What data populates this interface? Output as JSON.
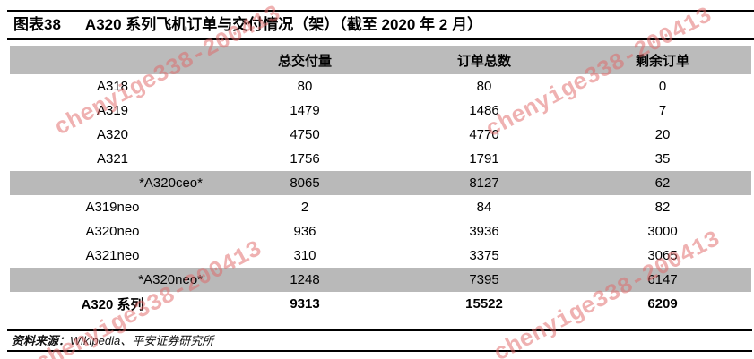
{
  "title": {
    "index": "图表38",
    "text": "A320 系列飞机订单与交付情况（架）（截至 2020 年 2 月）"
  },
  "table": {
    "columns": [
      "",
      "总交付量",
      "订单总数",
      "剩余订单"
    ],
    "rows": [
      {
        "label": "A318",
        "delivered": "80",
        "orders": "80",
        "remaining": "0",
        "style": "normal"
      },
      {
        "label": "A319",
        "delivered": "1479",
        "orders": "1486",
        "remaining": "7",
        "style": "normal"
      },
      {
        "label": "A320",
        "delivered": "4750",
        "orders": "4770",
        "remaining": "20",
        "style": "normal"
      },
      {
        "label": "A321",
        "delivered": "1756",
        "orders": "1791",
        "remaining": "35",
        "style": "normal"
      },
      {
        "label": "*A320ceo*",
        "delivered": "8065",
        "orders": "8127",
        "remaining": "62",
        "style": "highlight"
      },
      {
        "label": "A319neo",
        "delivered": "2",
        "orders": "84",
        "remaining": "82",
        "style": "normal"
      },
      {
        "label": "A320neo",
        "delivered": "936",
        "orders": "3936",
        "remaining": "3000",
        "style": "normal"
      },
      {
        "label": "A321neo",
        "delivered": "310",
        "orders": "3375",
        "remaining": "3065",
        "style": "normal"
      },
      {
        "label": "*A320neo*",
        "delivered": "1248",
        "orders": "7395",
        "remaining": "6147",
        "style": "highlight"
      },
      {
        "label": "A320 系列",
        "delivered": "9313",
        "orders": "15522",
        "remaining": "6209",
        "style": "total"
      }
    ]
  },
  "footer": {
    "label": "资料来源：",
    "text": "Wikipedia、平安证券研究所"
  },
  "watermark": {
    "text": "chenyige338-200413",
    "color": "#e06666"
  },
  "colors": {
    "header_bg": "#bbbbbb",
    "highlight_bg": "#b9b9b9",
    "rule": "#000000"
  }
}
